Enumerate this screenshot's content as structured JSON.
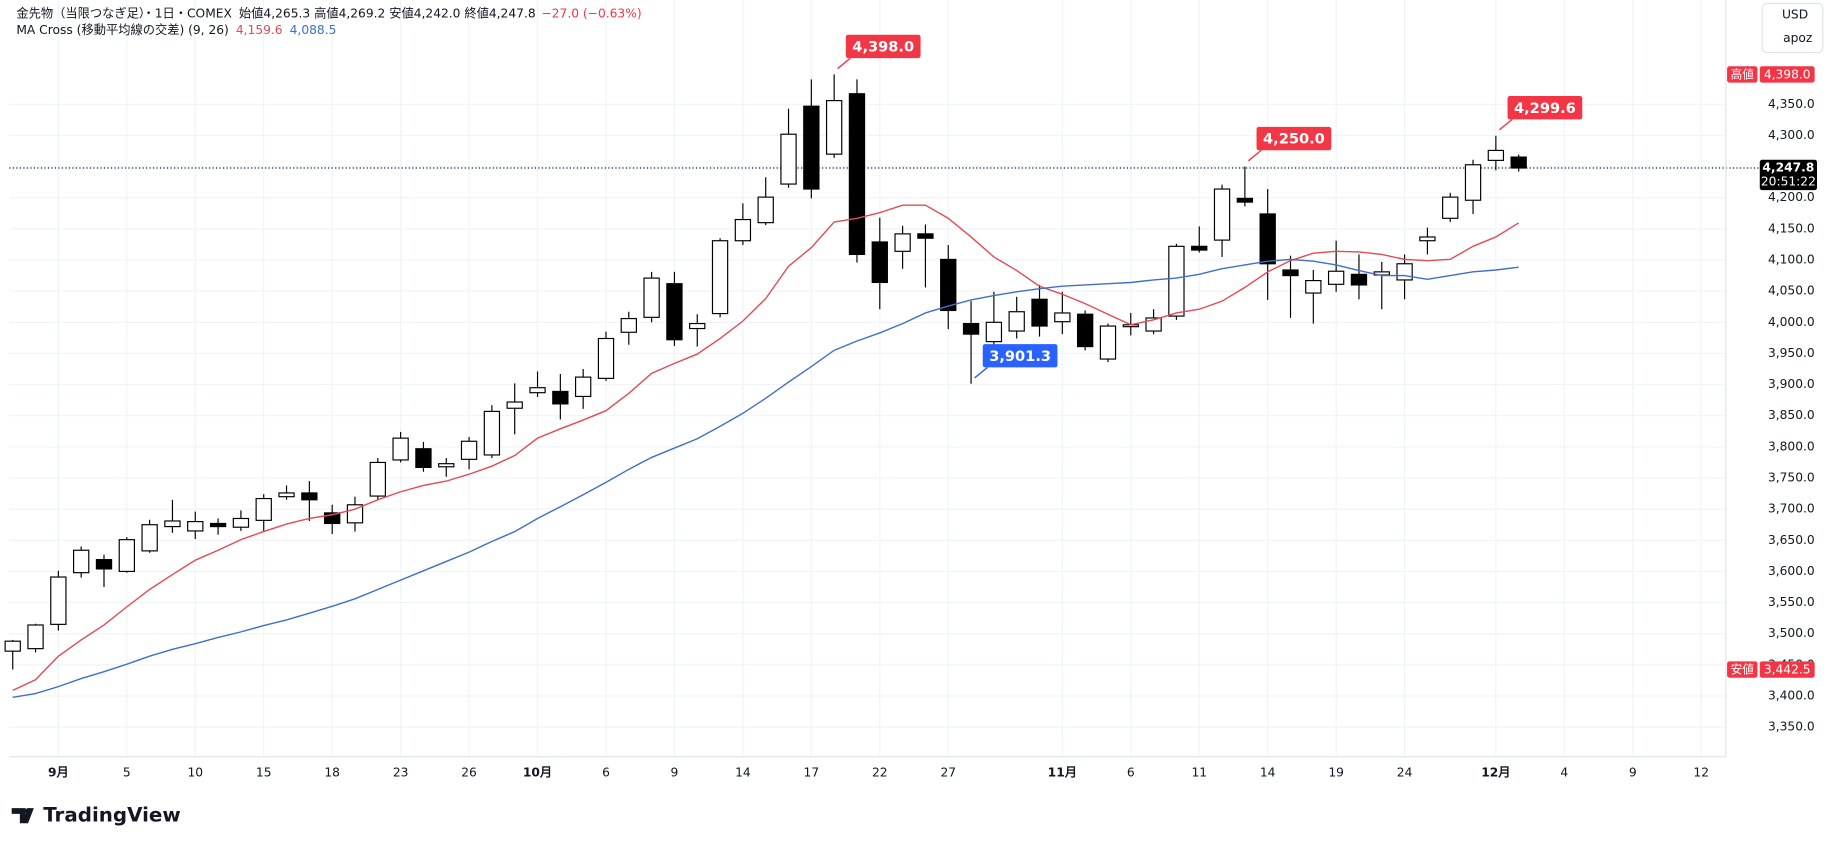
{
  "chart_data": {
    "type": "candlestick",
    "title": "金先物（当限つなぎ足）",
    "subtitle": "・1日・COMEX",
    "legend_text": "始値4,265.3 高値4,269.2 安値4,242.0 終値4,247.8",
    "change_text": "−27.0 (−0.63%)",
    "currency": "USD",
    "user": "apoz",
    "brand": "TradingView",
    "categories": [
      null,
      null,
      "9月",
      null,
      null,
      "5",
      null,
      null,
      "10",
      null,
      null,
      "15",
      null,
      null,
      "18",
      null,
      null,
      "23",
      null,
      null,
      "26",
      null,
      null,
      "10月",
      null,
      null,
      "6",
      null,
      null,
      "9",
      null,
      null,
      "14",
      null,
      null,
      "17",
      null,
      null,
      "22",
      null,
      null,
      "27",
      null,
      null,
      null,
      null,
      "11月",
      null,
      null,
      "6",
      null,
      null,
      "11",
      null,
      null,
      "14",
      null,
      null,
      "19",
      null,
      null,
      "24",
      null,
      null,
      null,
      "12月",
      null,
      null,
      "4",
      null,
      null,
      "9",
      null,
      null,
      "12"
    ],
    "open": [
      3472,
      3476,
      3515,
      3598,
      3619,
      3600,
      3633,
      3672,
      3665,
      3677,
      3671,
      3682,
      3720,
      3726,
      3694,
      3678,
      3721,
      3779,
      3797,
      3768,
      3780,
      3787,
      3862,
      3887,
      3889,
      3881,
      3910,
      3984,
      4008,
      4062,
      3990,
      4014,
      4131,
      4160,
      4222,
      4347,
      4270,
      4367,
      4129,
      4114,
      4142,
      4101,
      3998,
      3969,
      3986,
      4037,
      4001,
      4013,
      3941,
      3993,
      3986,
      4010,
      4122,
      4132,
      4199,
      4174,
      4084,
      4047,
      4061,
      4077,
      4076,
      4068,
      4131,
      4167,
      4196,
      4260,
      4265.3,
      null,
      null,
      null,
      null,
      null,
      null,
      null,
      null
    ],
    "high": [
      3490,
      3516,
      3601,
      3640,
      3627,
      3655,
      3683,
      3715,
      3696,
      3685,
      3698,
      3724,
      3738,
      3745,
      3707,
      3720,
      3782,
      3824,
      3808,
      3782,
      3816,
      3867,
      3902,
      3921,
      3917,
      3925,
      3985,
      4017,
      4081,
      4081,
      4013,
      4135,
      4191,
      4233,
      4343,
      4390,
      4398,
      4390,
      4168,
      4155,
      4157,
      4124,
      4034,
      4049,
      4041,
      4060,
      4049,
      4019,
      3998,
      4015,
      4021,
      4126,
      4154,
      4221,
      4250,
      4214,
      4107,
      4084,
      4131,
      4109,
      4097,
      4109,
      4152,
      4208,
      4261,
      4299.6,
      4269.2,
      null,
      null,
      null,
      null,
      null,
      null,
      null,
      null
    ],
    "low": [
      3442.5,
      3470,
      3505,
      3590,
      3575,
      3598,
      3630,
      3662,
      3652,
      3659,
      3665,
      3664,
      3715,
      3681,
      3660,
      3664,
      3715,
      3775,
      3760,
      3752,
      3764,
      3782,
      3820,
      3880,
      3844,
      3861,
      3906,
      3964,
      4000,
      3962,
      3961,
      4008,
      4124,
      4156,
      4216,
      4199,
      4264,
      4096,
      4021,
      4086,
      4056,
      3989,
      3901.3,
      3951,
      3974,
      3977,
      3981,
      3955,
      3936,
      3979,
      3981,
      4004,
      4112,
      4105,
      4186,
      4036,
      4007,
      3998,
      4049,
      4037,
      4021,
      4037,
      4109,
      4161,
      4174,
      4244,
      4242.0,
      null,
      null,
      null,
      null,
      null,
      null,
      null,
      null
    ],
    "close": [
      3488,
      3514,
      3591,
      3634,
      3604,
      3651,
      3675,
      3681,
      3680,
      3672,
      3685,
      3717,
      3726,
      3715,
      3677,
      3707,
      3775,
      3814,
      3767,
      3773,
      3809,
      3857,
      3872,
      3895,
      3869,
      3912,
      3974,
      4006,
      4071,
      3972,
      3998,
      4131,
      4165,
      4201,
      4302,
      4214,
      4356,
      4109,
      4064,
      4142,
      4135,
      4019,
      3981,
      4000,
      4017,
      3994,
      4015,
      3961,
      3994,
      3996,
      4007,
      4122,
      4116,
      4214,
      4193,
      4094,
      4075,
      4067,
      4082,
      4060,
      4081,
      4094,
      4137,
      4201,
      4253,
      4276,
      4247.8,
      null,
      null,
      null,
      null,
      null,
      null,
      null,
      null
    ],
    "up_color": "#ffffff",
    "down_color": "#000000",
    "indicator": {
      "title": "MA Cross (移動平均線の交差) (9, 26)",
      "series": [
        {
          "color": "#e04b55",
          "last_label": "4,159.6",
          "values": [
            3409,
            3426,
            3464,
            3490,
            3514,
            3543,
            3571,
            3595,
            3618,
            3634,
            3651,
            3664,
            3676,
            3685,
            3691,
            3700,
            3715,
            3728,
            3738,
            3745,
            3756,
            3769,
            3786,
            3814,
            3829,
            3843,
            3858,
            3886,
            3918,
            3934,
            3949,
            3974,
            4002,
            4038,
            4090,
            4120,
            4161,
            4167,
            4176,
            4188,
            4188,
            4167,
            4137,
            4105,
            4083,
            4058,
            4045,
            4030,
            4013,
            3996,
            4004,
            4015,
            4021,
            4034,
            4056,
            4081,
            4099,
            4111,
            4114,
            4113,
            4109,
            4101,
            4099,
            4101,
            4122,
            4137,
            4159.6,
            null,
            null,
            null,
            null,
            null,
            null,
            null,
            null
          ]
        },
        {
          "color": "#3f6fc9",
          "last_label": "4,088.5",
          "values": [
            3398,
            3404,
            3415,
            3428,
            3439,
            3451,
            3464,
            3475,
            3484,
            3494,
            3503,
            3513,
            3522,
            3533,
            3544,
            3556,
            3571,
            3586,
            3601,
            3616,
            3631,
            3648,
            3664,
            3685,
            3704,
            3723,
            3743,
            3764,
            3783,
            3798,
            3813,
            3833,
            3854,
            3878,
            3904,
            3929,
            3955,
            3970,
            3983,
            3998,
            4015,
            4026,
            4036,
            4043,
            4049,
            4054,
            4058,
            4060,
            4062,
            4064,
            4068,
            4071,
            4077,
            4086,
            4092,
            4098,
            4101,
            4098,
            4092,
            4083,
            4075,
            4075,
            4069,
            4075,
            4081,
            4084,
            4088.5,
            null,
            null,
            null,
            null,
            null,
            null,
            null,
            null
          ]
        }
      ]
    },
    "ylim": [
      3302.5,
      4517.5
    ],
    "yticks": [
      {
        "value": 3350,
        "label": "3,350.0"
      },
      {
        "value": 3400,
        "label": "3,400.0"
      },
      {
        "value": 3450,
        "label": "3,450.0"
      },
      {
        "value": 3500,
        "label": "3,500.0"
      },
      {
        "value": 3550,
        "label": "3,550.0"
      },
      {
        "value": 3600,
        "label": "3,600.0"
      },
      {
        "value": 3650,
        "label": "3,650.0"
      },
      {
        "value": 3700,
        "label": "3,700.0"
      },
      {
        "value": 3750,
        "label": "3,750.0"
      },
      {
        "value": 3800,
        "label": "3,800.0"
      },
      {
        "value": 3850,
        "label": "3,850.0"
      },
      {
        "value": 3900,
        "label": "3,900.0"
      },
      {
        "value": 3950,
        "label": "3,950.0"
      },
      {
        "value": 4000,
        "label": "4,000.0"
      },
      {
        "value": 4050,
        "label": "4,050.0"
      },
      {
        "value": 4100,
        "label": "4,100.0"
      },
      {
        "value": 4150,
        "label": "4,150.0"
      },
      {
        "value": 4200,
        "label": "4,200.0"
      },
      {
        "value": 4250,
        "label": "4,250.0"
      },
      {
        "value": 4300,
        "label": "4,300.0"
      },
      {
        "value": 4350,
        "label": "4,350.0"
      }
    ],
    "grid": true,
    "callouts": [
      {
        "at": 36,
        "value": 4398.0,
        "label": "4,398.0",
        "color": "#f23645"
      },
      {
        "at": 54,
        "value": 4250.0,
        "label": "4,250.0",
        "color": "#f23645"
      },
      {
        "at": 65,
        "value": 4299.6,
        "label": "4,299.6",
        "color": "#f23645"
      },
      {
        "at": 42,
        "value": 3901.3,
        "label": "3,901.3",
        "color": "#2962ff"
      }
    ],
    "axis_markers": [
      {
        "tag": "高値",
        "value": 4398.0,
        "label": "4,398.0",
        "color": "#f23645"
      },
      {
        "tag": "安値",
        "value": 3442.5,
        "label": "3,442.5",
        "color": "#f23645"
      }
    ],
    "last_price": {
      "value": 4247.8,
      "label": "4,247.8",
      "countdown": "20:51:22",
      "color": "#000000"
    }
  }
}
